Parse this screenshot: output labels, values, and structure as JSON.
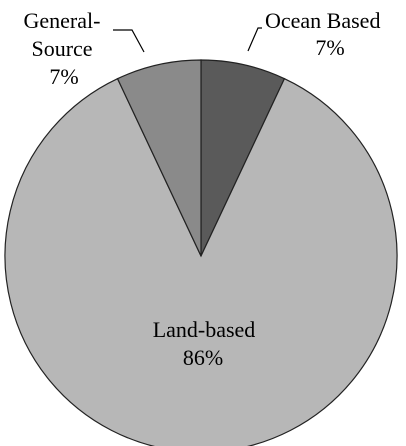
{
  "chart_data": {
    "type": "pie",
    "title": "",
    "slices": [
      {
        "label": "Ocean Based",
        "value": 7,
        "value_label": "7%",
        "color": "#5a5a5a"
      },
      {
        "label": "Land-based",
        "value": 86,
        "value_label": "86%",
        "color": "#b7b7b7"
      },
      {
        "label": "General-Source",
        "value": 7,
        "value_label": "7%",
        "color": "#8a8a8a"
      }
    ],
    "start_angle_deg": 0,
    "direction": "clockwise",
    "edge_color": "#222222",
    "legend": "none"
  },
  "labels": {
    "ocean_line1": "Ocean Based",
    "ocean_pct": "7%",
    "general_line1": "General-",
    "general_line2": "Source",
    "general_pct": "7%",
    "land_line1": "Land-based",
    "land_pct": "86%"
  }
}
